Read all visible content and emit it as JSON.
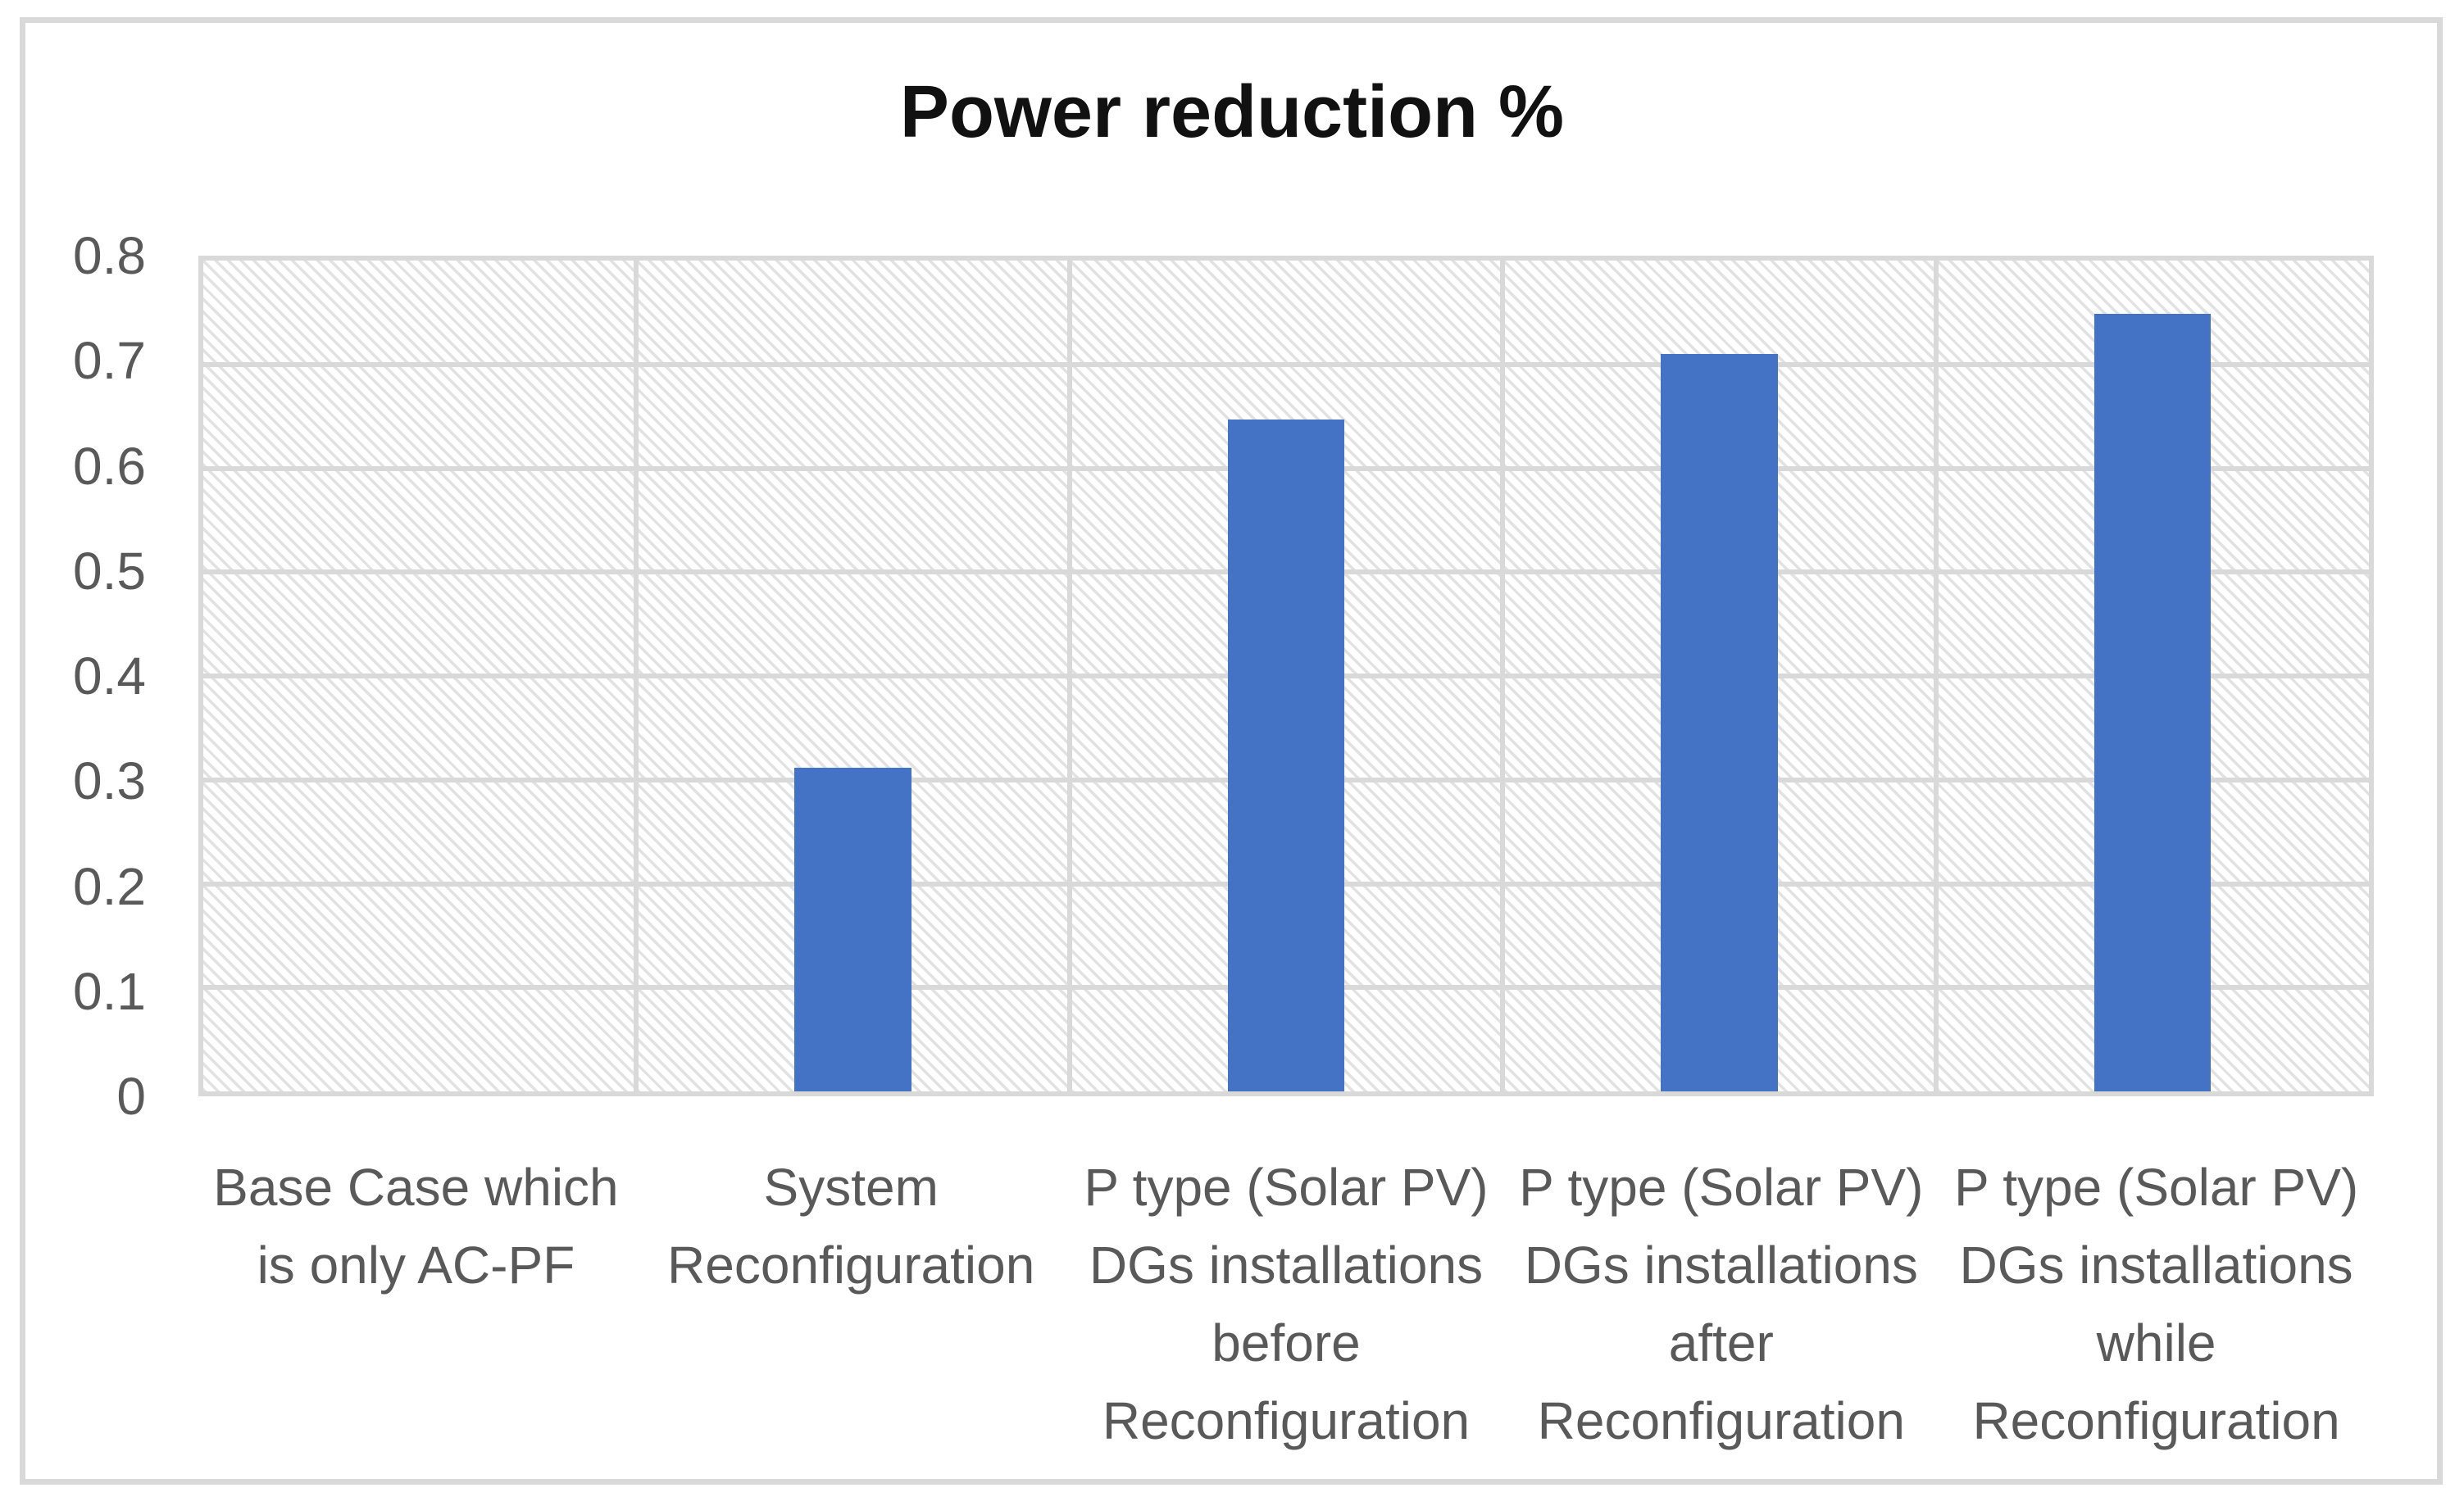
{
  "chart_data": {
    "type": "bar",
    "title": "Power reduction %",
    "categories": [
      "Base Case which is only AC-PF",
      "System Reconfiguration",
      "P type (Solar PV) DGs installations before Reconfiguration",
      "P type (Solar PV) DGs installations after Reconfiguration",
      "P type (Solar PV) DGs installations while Reconfiguration"
    ],
    "category_display_lines": [
      [
        "Base Case which",
        "is only AC-PF"
      ],
      [
        "System",
        "Reconfiguration"
      ],
      [
        "P type (Solar PV)",
        "DGs installations",
        "before",
        "Reconfiguration"
      ],
      [
        "P type (Solar PV)",
        "DGs installations",
        "after",
        "Reconfiguration"
      ],
      [
        "P type (Solar PV)",
        "DGs installations",
        "while",
        "Reconfiguration"
      ]
    ],
    "values": [
      0,
      0.312,
      0.647,
      0.71,
      0.749
    ],
    "xlabel": "",
    "ylabel": "",
    "ylim": [
      0,
      0.8
    ],
    "ytick_step": 0.1,
    "ytick_labels": [
      "0",
      "0.1",
      "0.2",
      "0.3",
      "0.4",
      "0.5",
      "0.6",
      "0.7",
      "0.8"
    ],
    "grid": true,
    "legend": "none",
    "plot_background": "diagonal-hatch",
    "colors": {
      "bar": "#4472C4",
      "gridline": "#D9D9D9",
      "axis_text": "#595959",
      "title_text": "#111111",
      "plot_hatch": "#E2E2E2",
      "frame_border": "#D9D9D9",
      "background": "#FFFFFF"
    }
  }
}
